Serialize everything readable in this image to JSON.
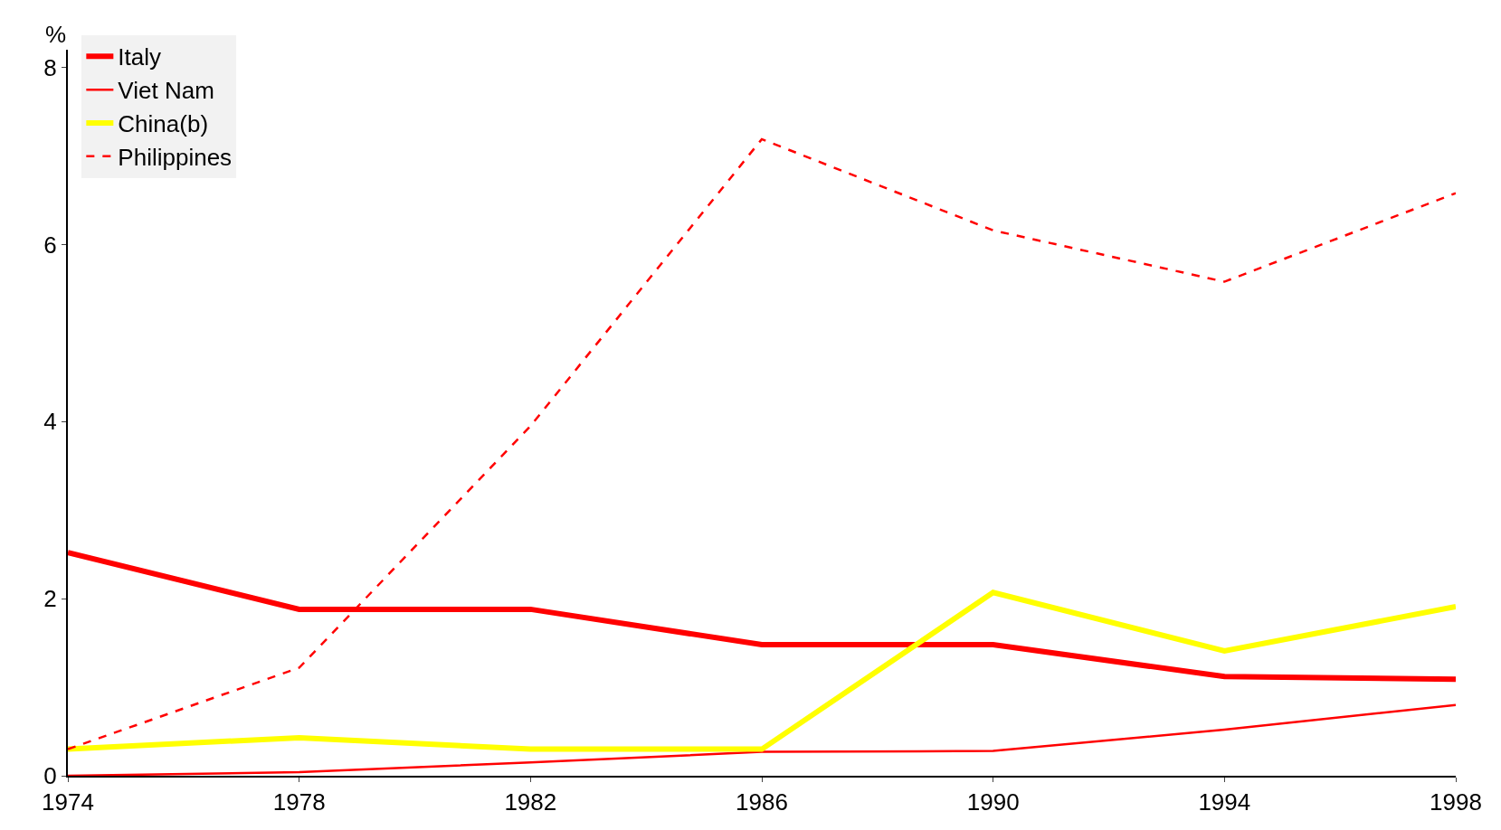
{
  "chart_data": {
    "type": "line",
    "ylabel": "%",
    "x": [
      1974,
      1978,
      1982,
      1986,
      1990,
      1994,
      1998
    ],
    "series": [
      {
        "name": "Italy",
        "color": "#ff0000",
        "values": [
          2.52,
          1.88,
          1.88,
          1.48,
          1.48,
          1.12,
          1.09
        ]
      },
      {
        "name": "Viet Nam",
        "color": "#ff0000",
        "values": [
          0.0,
          0.04,
          0.15,
          0.27,
          0.28,
          0.52,
          0.8
        ]
      },
      {
        "name": "China(b)",
        "color": "#ffff00",
        "values": [
          0.3,
          0.43,
          0.3,
          0.3,
          2.07,
          1.41,
          1.91
        ]
      },
      {
        "name": "Philippines",
        "color": "#ff0000",
        "line_style": "dashed",
        "values": [
          0.3,
          1.22,
          3.95,
          7.19,
          6.16,
          5.58,
          6.58
        ]
      }
    ],
    "xlim": [
      1974,
      1998
    ],
    "xticks": [
      1974,
      1978,
      1982,
      1986,
      1990,
      1994,
      1998
    ],
    "ylim": [
      0,
      8.2
    ],
    "yticks": [
      0,
      2,
      4,
      6,
      8
    ],
    "legend": "top left",
    "line_style": "solid",
    "marker": "none"
  }
}
